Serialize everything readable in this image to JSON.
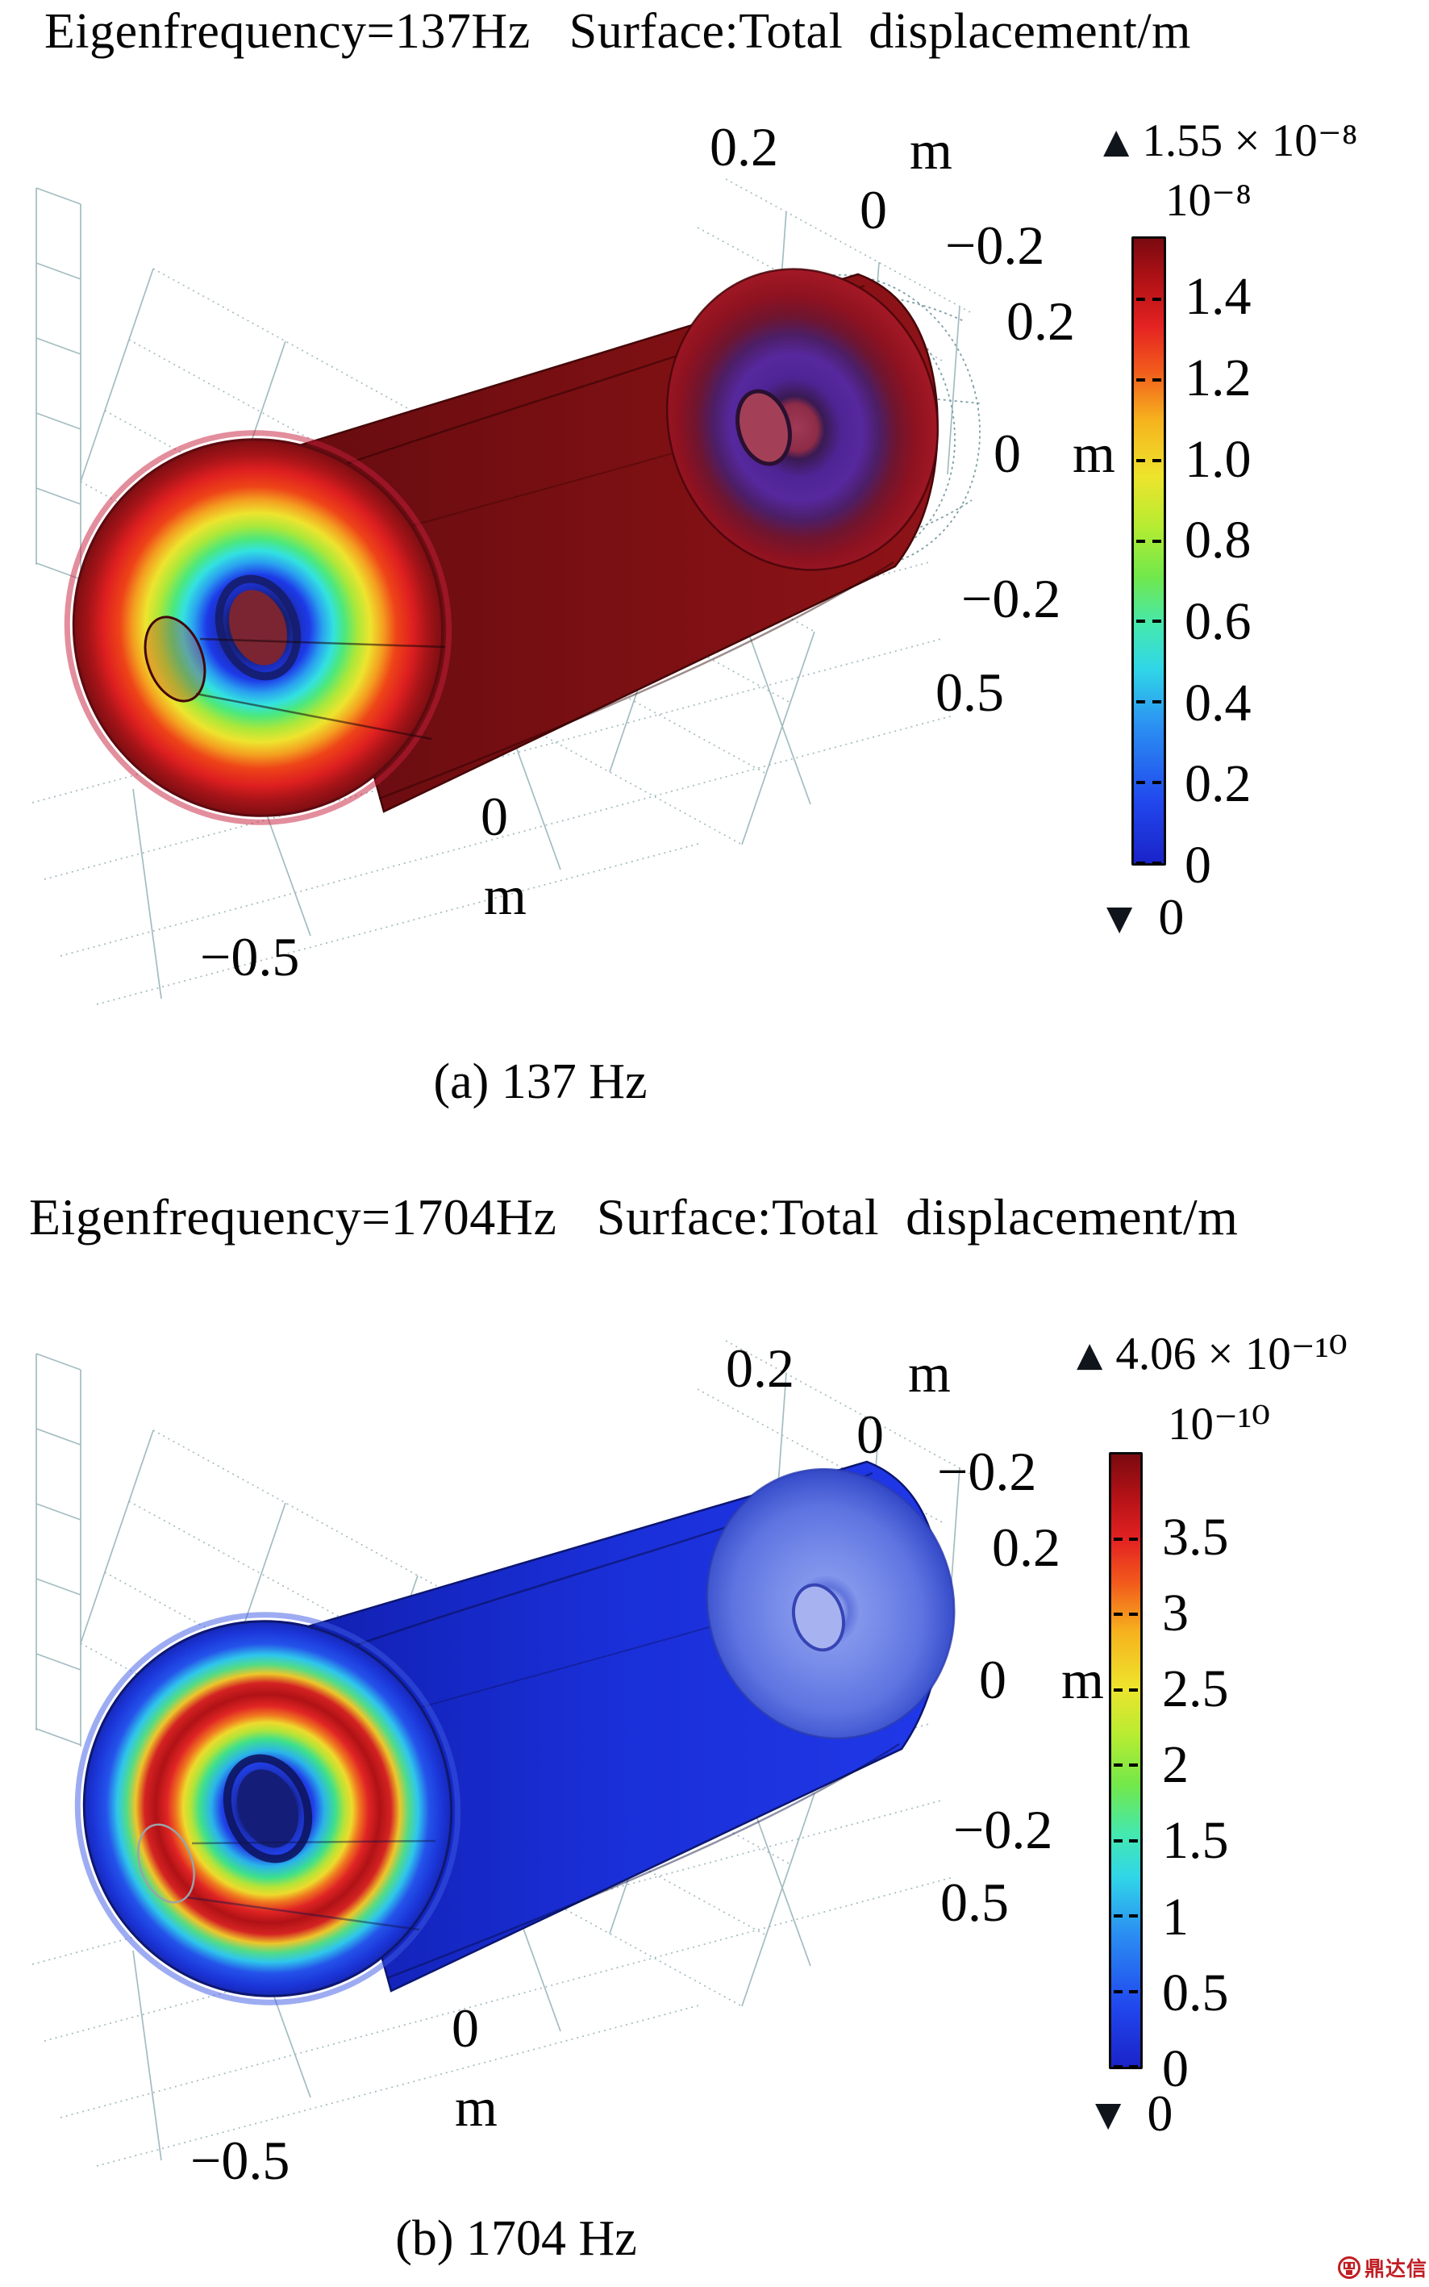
{
  "page": {
    "background": "#ffffff"
  },
  "watermark": {
    "logo": "dingdaxin-logo",
    "text": "鼎达信",
    "color": "#c01f24"
  },
  "figures": [
    {
      "title": "Eigenfrequency=137Hz   Surface:Total  displacement/m",
      "caption": "(a) 137 Hz",
      "labels": {
        "top_02": "0.2",
        "top_m": "m",
        "top_0": "0",
        "top_m02": "−0.2",
        "right_02": "0.2",
        "right_0": "0",
        "right_m": "m",
        "right_m02": "−0.2",
        "right_05": "0.5",
        "bot_0": "0",
        "bot_m": "m",
        "bot_m05": "−0.5"
      },
      "colorbar": {
        "max_marker": "▲",
        "max_label": "1.55 × 10⁻⁸",
        "scale_label": "10⁻⁸",
        "min_marker": "▼",
        "min_label": "0",
        "max_value": 1.55,
        "tick_values": [
          1.4,
          1.2,
          1.0,
          0.8,
          0.6,
          0.4,
          0.2,
          0
        ],
        "tick_labels": [
          "1.4",
          "1.2",
          "1.0",
          "0.8",
          "0.6",
          "0.4",
          "0.2",
          "0"
        ]
      }
    },
    {
      "title": "Eigenfrequency=1704Hz   Surface:Total  displacement/m",
      "caption": "(b) 1704 Hz",
      "labels": {
        "top_02": "0.2",
        "top_m": "m",
        "top_0": "0",
        "top_m02": "−0.2",
        "right_02": "0.2",
        "right_0": "0",
        "right_m": "m",
        "right_m02": "−0.2",
        "right_05": "0.5",
        "bot_0": "0",
        "bot_m": "m",
        "bot_m05": "−0.5"
      },
      "colorbar": {
        "max_marker": "▲",
        "max_label": "4.06 × 10⁻¹⁰",
        "scale_label": "10⁻¹⁰",
        "min_marker": "▼",
        "min_label": "0",
        "max_value": 4.06,
        "tick_values": [
          3.5,
          3,
          2.5,
          2,
          1.5,
          1,
          0.5,
          0
        ],
        "tick_labels": [
          "3.5",
          "3",
          "2.5",
          "2",
          "1.5",
          "1",
          "0.5",
          "0"
        ]
      }
    }
  ],
  "chart_data": [
    {
      "type": "heatmap",
      "render": "3d-eigenmode-surface",
      "title": "Eigenfrequency=137Hz Surface:Total displacement/m",
      "caption": "(a) 137 Hz",
      "eigenfrequency_hz": 137,
      "quantity": "Total displacement",
      "units": "m",
      "colorbar": {
        "colormap": "rainbow",
        "scale_factor": "1e-8",
        "max": 1.55e-08,
        "min": 0,
        "tick_values_scaled": [
          1.4,
          1.2,
          1.0,
          0.8,
          0.6,
          0.4,
          0.2,
          0
        ]
      },
      "axes": {
        "top_axis_ticks_m": [
          0.2,
          0,
          -0.2
        ],
        "right_axis_ticks_m": [
          0.2,
          0,
          -0.2
        ],
        "bottom_axis_ticks_m": [
          0.5,
          0,
          -0.5
        ],
        "unit": "m"
      },
      "geometry": "cylindrical muffler shell, wireframe of undeformed mesh at right end",
      "surface_pattern": "body saturated dark red (near max); left end face concentric rainbow rings red→yellow→green→cyan→blue toward center hole; right end face red with violet core"
    },
    {
      "type": "heatmap",
      "render": "3d-eigenmode-surface",
      "title": "Eigenfrequency=1704Hz Surface:Total displacement/m",
      "caption": "(b) 1704 Hz",
      "eigenfrequency_hz": 1704,
      "quantity": "Total displacement",
      "units": "m",
      "colorbar": {
        "colormap": "rainbow",
        "scale_factor": "1e-10",
        "max": 4.06e-10,
        "min": 0,
        "tick_values_scaled": [
          3.5,
          3,
          2.5,
          2,
          1.5,
          1,
          0.5,
          0
        ]
      },
      "axes": {
        "top_axis_ticks_m": [
          0.2,
          0,
          -0.2
        ],
        "right_axis_ticks_m": [
          0.2,
          0,
          -0.2
        ],
        "bottom_axis_ticks_m": [
          0.5,
          0,
          -0.5
        ],
        "unit": "m"
      },
      "geometry": "cylindrical muffler shell, pale ghost shell at right end",
      "surface_pattern": "body royal blue (near min); left end face rainbow annulus with thick red ring between blue outer rim and blue center hole"
    }
  ]
}
